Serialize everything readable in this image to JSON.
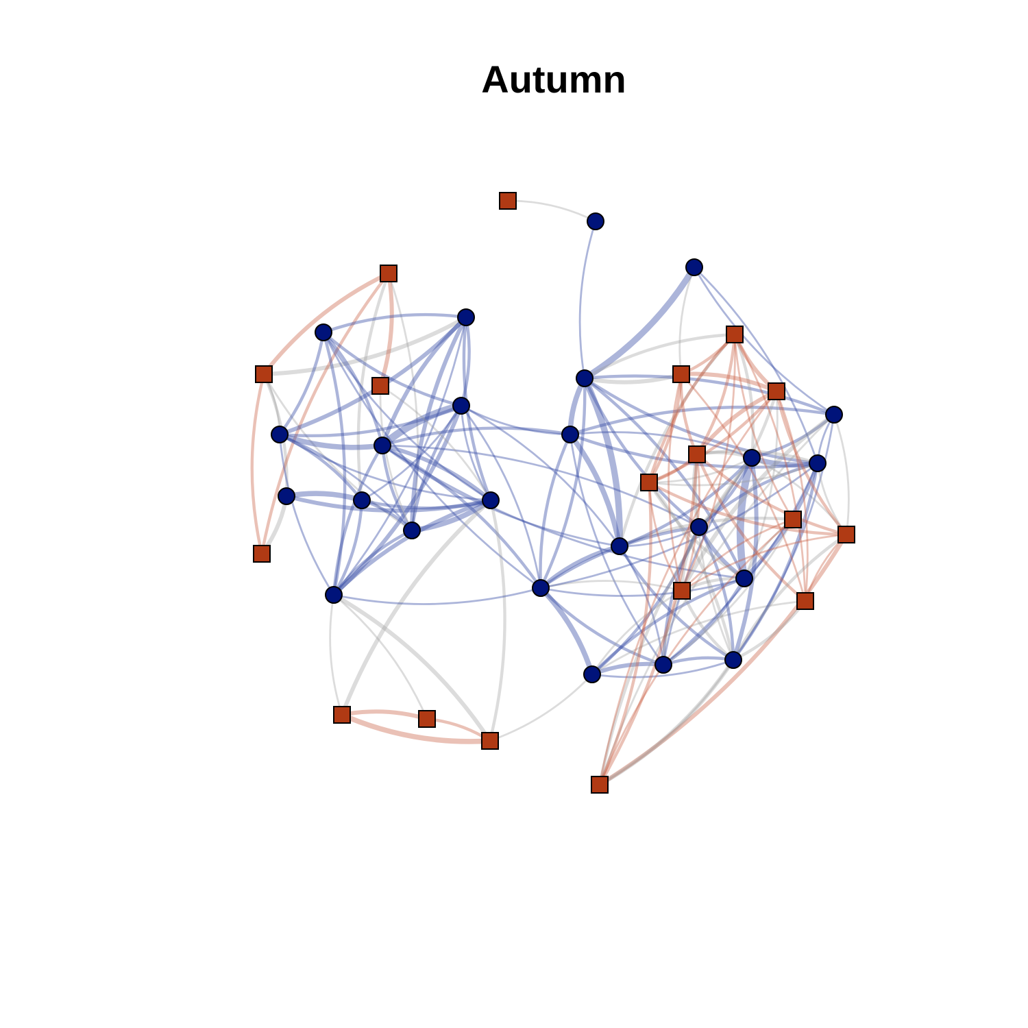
{
  "title": "Autumn",
  "colors": {
    "circle_fill": "#00137a",
    "square_fill": "#b03a14",
    "node_stroke": "#000000",
    "edge_circle_circle": "#3a4fa8",
    "edge_square_square": "#c95c3e",
    "edge_mixed": "#9a9a9a"
  },
  "node_kinds": {
    "circle": "circle-node",
    "square": "square-node"
  },
  "edges": [
    [
      "s1",
      "c1",
      1
    ],
    [
      "c1",
      "c13",
      1
    ],
    [
      "c2",
      "c13",
      5
    ],
    [
      "c2",
      "s4",
      1
    ],
    [
      "c2",
      "c23",
      1
    ],
    [
      "c2",
      "c21",
      1
    ],
    [
      "s9",
      "c8",
      2
    ],
    [
      "s9",
      "c3",
      3
    ],
    [
      "s9",
      "s2",
      3
    ],
    [
      "s9",
      "s7",
      2
    ],
    [
      "s9",
      "c6",
      1
    ],
    [
      "s9",
      "c10",
      1
    ],
    [
      "c8",
      "c9",
      4
    ],
    [
      "c8",
      "c11",
      3
    ],
    [
      "c8",
      "s7",
      3
    ],
    [
      "s2",
      "s7",
      2
    ],
    [
      "s2",
      "s3",
      3
    ],
    [
      "s2",
      "c9",
      2
    ],
    [
      "s2",
      "c10",
      1
    ],
    [
      "c3",
      "c4",
      2
    ],
    [
      "c3",
      "c6",
      3
    ],
    [
      "c3",
      "c7",
      3
    ],
    [
      "c3",
      "c5",
      2
    ],
    [
      "c3",
      "c10",
      3
    ],
    [
      "c3",
      "c12",
      1
    ],
    [
      "c3",
      "c11",
      2
    ],
    [
      "c4",
      "c6",
      2
    ],
    [
      "c4",
      "c5",
      2
    ],
    [
      "c4",
      "c7",
      2
    ],
    [
      "c4",
      "c11",
      1
    ],
    [
      "c4",
      "c12",
      2
    ],
    [
      "c4",
      "c16",
      1
    ],
    [
      "c5",
      "c6",
      2
    ],
    [
      "c5",
      "c7",
      6
    ],
    [
      "c5",
      "c12",
      3
    ],
    [
      "c5",
      "c10",
      2
    ],
    [
      "c5",
      "c9",
      1
    ],
    [
      "c5",
      "c11",
      1
    ],
    [
      "c5",
      "c16",
      1
    ],
    [
      "c5",
      "c14",
      1
    ],
    [
      "c5",
      "c15",
      1
    ],
    [
      "c6",
      "c7",
      4
    ],
    [
      "c6",
      "c9",
      2
    ],
    [
      "c6",
      "c12",
      1
    ],
    [
      "c6",
      "c10",
      1
    ],
    [
      "c6",
      "c11",
      1
    ],
    [
      "c7",
      "c11",
      3
    ],
    [
      "c7",
      "c12",
      2
    ],
    [
      "c7",
      "c14",
      2
    ],
    [
      "c7",
      "c15",
      1
    ],
    [
      "c7",
      "c16",
      2
    ],
    [
      "c7",
      "c10",
      2
    ],
    [
      "c7",
      "c19",
      1
    ],
    [
      "c7",
      "c20",
      1
    ],
    [
      "c9",
      "c10",
      2
    ],
    [
      "c9",
      "c11",
      2
    ],
    [
      "c9",
      "c12",
      2
    ],
    [
      "c10",
      "c11",
      4
    ],
    [
      "c10",
      "s3",
      1
    ],
    [
      "c10",
      "c12",
      2
    ],
    [
      "s3",
      "c11",
      1
    ],
    [
      "c11",
      "c12",
      3
    ],
    [
      "c11",
      "s8",
      2
    ],
    [
      "c11",
      "s5",
      3
    ],
    [
      "c12",
      "s8",
      3
    ],
    [
      "c12",
      "s5",
      1
    ],
    [
      "c12",
      "s6",
      1
    ],
    [
      "c12",
      "c16",
      1
    ],
    [
      "s5",
      "s6",
      3
    ],
    [
      "s5",
      "s8",
      4
    ],
    [
      "s6",
      "s8",
      2
    ],
    [
      "s8",
      "c17",
      1
    ],
    [
      "c13",
      "c15",
      5
    ],
    [
      "c13",
      "c14",
      4
    ],
    [
      "c13",
      "c16",
      2
    ],
    [
      "c13",
      "s4",
      3
    ],
    [
      "c13",
      "c21",
      2
    ],
    [
      "c13",
      "c19",
      2
    ],
    [
      "c13",
      "s10",
      2
    ],
    [
      "c13",
      "c23",
      2
    ],
    [
      "c13",
      "c20",
      2
    ],
    [
      "c14",
      "c16",
      2
    ],
    [
      "c14",
      "c15",
      4
    ],
    [
      "c14",
      "c23",
      2
    ],
    [
      "c14",
      "c22",
      1
    ],
    [
      "c14",
      "c18",
      1
    ],
    [
      "c14",
      "c21",
      2
    ],
    [
      "c15",
      "c16",
      3
    ],
    [
      "c15",
      "s10",
      2
    ],
    [
      "c15",
      "c19",
      1
    ],
    [
      "c15",
      "c18",
      1
    ],
    [
      "c15",
      "c24",
      2
    ],
    [
      "c15",
      "s15",
      2
    ],
    [
      "c15",
      "c22",
      2
    ],
    [
      "c16",
      "c17",
      4
    ],
    [
      "c16",
      "c18",
      2
    ],
    [
      "c16",
      "c19",
      2
    ],
    [
      "c16",
      "c20",
      1
    ],
    [
      "c16",
      "s14",
      1
    ],
    [
      "c16",
      "c23",
      1
    ],
    [
      "c17",
      "c18",
      3
    ],
    [
      "c17",
      "c19",
      2
    ],
    [
      "c17",
      "c20",
      2
    ],
    [
      "c17",
      "c24",
      1
    ],
    [
      "c17",
      "s14",
      1
    ],
    [
      "s16",
      "c17",
      1
    ],
    [
      "c18",
      "c19",
      2
    ],
    [
      "c18",
      "c20",
      2
    ],
    [
      "c18",
      "c24",
      2
    ],
    [
      "c18",
      "s15",
      1
    ],
    [
      "c18",
      "s14",
      2
    ],
    [
      "c18",
      "c23",
      1
    ],
    [
      "c18",
      "c22",
      1
    ],
    [
      "c19",
      "c20",
      3
    ],
    [
      "c19",
      "c24",
      2
    ],
    [
      "c19",
      "c22",
      2
    ],
    [
      "c19",
      "c23",
      2
    ],
    [
      "c19",
      "s11",
      2
    ],
    [
      "c19",
      "s12",
      2
    ],
    [
      "c19",
      "s14",
      2
    ],
    [
      "c20",
      "c22",
      6
    ],
    [
      "c20",
      "c23",
      3
    ],
    [
      "c20",
      "s13",
      2
    ],
    [
      "c20",
      "s11",
      1
    ],
    [
      "c20",
      "s15",
      1
    ],
    [
      "c20",
      "s14",
      2
    ],
    [
      "c21",
      "c22",
      2
    ],
    [
      "c21",
      "c23",
      1
    ],
    [
      "c21",
      "s17",
      1
    ],
    [
      "c21",
      "s18",
      1
    ],
    [
      "c21",
      "c24",
      1
    ],
    [
      "c22",
      "c23",
      4
    ],
    [
      "c22",
      "c24",
      3
    ],
    [
      "c22",
      "s12",
      2
    ],
    [
      "c22",
      "s13",
      1
    ],
    [
      "c22",
      "s10",
      2
    ],
    [
      "c22",
      "s17",
      1
    ],
    [
      "c22",
      "s18",
      2
    ],
    [
      "c23",
      "c24",
      2
    ],
    [
      "c23",
      "s12",
      2
    ],
    [
      "c23",
      "s13",
      1
    ],
    [
      "c23",
      "s17",
      1
    ],
    [
      "c24",
      "s12",
      1
    ],
    [
      "c24",
      "s13",
      2
    ],
    [
      "c24",
      "s18",
      1
    ],
    [
      "s4",
      "s10",
      2
    ],
    [
      "s4",
      "s11",
      3
    ],
    [
      "s4",
      "s12",
      2
    ],
    [
      "s4",
      "s13",
      2
    ],
    [
      "s4",
      "s14",
      1
    ],
    [
      "s4",
      "s16",
      1
    ],
    [
      "s10",
      "s11",
      3
    ],
    [
      "s10",
      "s12",
      2
    ],
    [
      "s10",
      "s13",
      2
    ],
    [
      "s10",
      "s14",
      1
    ],
    [
      "s10",
      "s15",
      1
    ],
    [
      "s10",
      "s16",
      1
    ],
    [
      "s11",
      "s12",
      3
    ],
    [
      "s11",
      "s13",
      2
    ],
    [
      "s11",
      "s17",
      2
    ],
    [
      "s11",
      "s16",
      1
    ],
    [
      "s11",
      "s18",
      1
    ],
    [
      "s12",
      "s13",
      2
    ],
    [
      "s12",
      "s17",
      2
    ],
    [
      "s12",
      "s18",
      2
    ],
    [
      "s12",
      "s16",
      2
    ],
    [
      "s12",
      "s14",
      1
    ],
    [
      "s13",
      "s17",
      2
    ],
    [
      "s13",
      "s18",
      2
    ],
    [
      "s13",
      "s14",
      1
    ],
    [
      "s17",
      "s18",
      3
    ],
    [
      "s17",
      "s16",
      1
    ],
    [
      "s18",
      "s15",
      1
    ],
    [
      "s15",
      "s14",
      1
    ],
    [
      "s14",
      "c21",
      3
    ],
    [
      "s14",
      "c24",
      2
    ],
    [
      "s14",
      "s17",
      1
    ],
    [
      "s18",
      "c24",
      3
    ],
    [
      "s16",
      "c24",
      2
    ],
    [
      "s17",
      "c24",
      2
    ]
  ]
}
